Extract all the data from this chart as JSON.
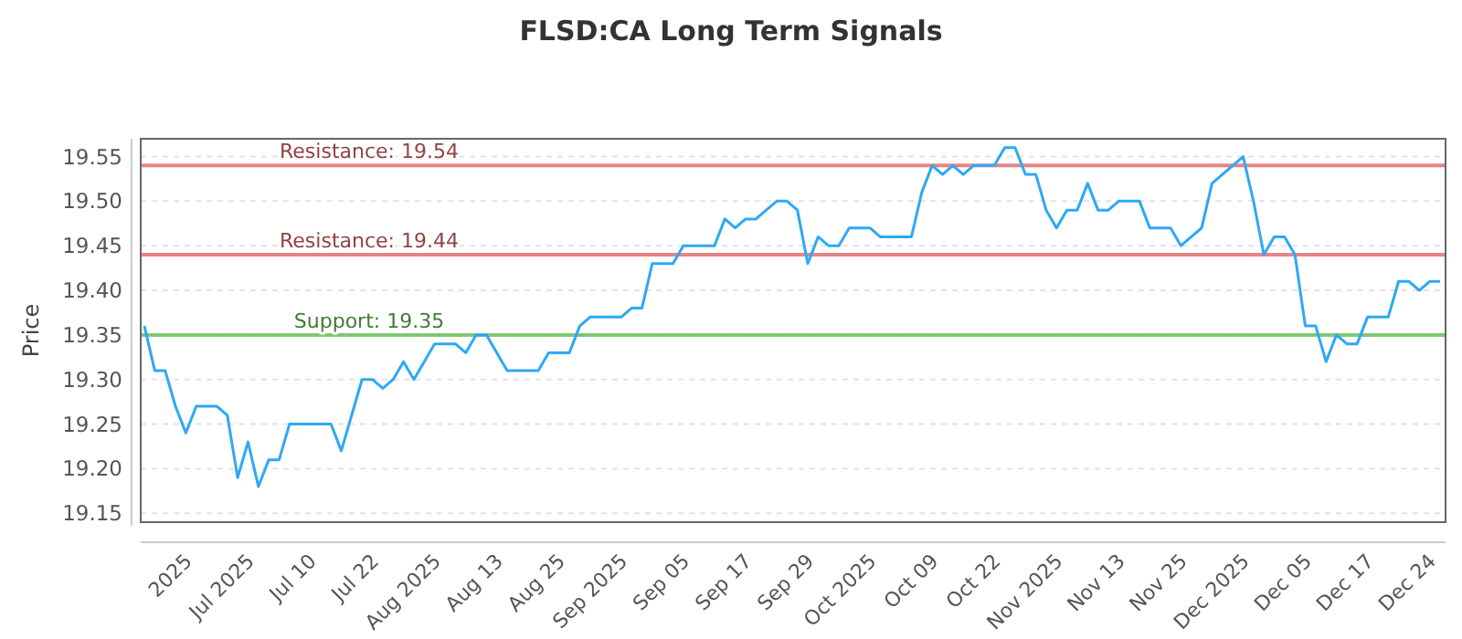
{
  "chart_data": {
    "type": "line",
    "title": "FLSD:CA Long Term Signals",
    "ylabel": "Price",
    "categories": [
      null,
      null,
      null,
      null,
      "2025",
      null,
      null,
      null,
      null,
      null,
      "Jul 2025",
      null,
      null,
      null,
      null,
      null,
      "Jul 10",
      null,
      null,
      null,
      null,
      null,
      "Jul 22",
      null,
      null,
      null,
      null,
      null,
      "Aug 2025",
      null,
      null,
      null,
      null,
      null,
      "Aug 13",
      null,
      null,
      null,
      null,
      null,
      "Aug 25",
      null,
      null,
      null,
      null,
      null,
      "Sep 2025",
      null,
      null,
      null,
      null,
      null,
      "Sep 05",
      null,
      null,
      null,
      null,
      null,
      "Sep 17",
      null,
      null,
      null,
      null,
      null,
      "Sep 29",
      null,
      null,
      null,
      null,
      null,
      "Oct 2025",
      null,
      null,
      null,
      null,
      null,
      "Oct 09",
      null,
      null,
      null,
      null,
      null,
      "Oct 22",
      null,
      null,
      null,
      null,
      null,
      "Nov 2025",
      null,
      null,
      null,
      null,
      null,
      "Nov 13",
      null,
      null,
      null,
      null,
      null,
      "Nov 25",
      null,
      null,
      null,
      null,
      null,
      "Dec 2025",
      null,
      null,
      null,
      null,
      null,
      "Dec 05",
      null,
      null,
      null,
      null,
      null,
      "Dec 17",
      null,
      null,
      null,
      null,
      null,
      "Dec 24",
      null
    ],
    "series": [
      {
        "color": "#2ea8f5",
        "values": [
          19.36,
          19.31,
          19.31,
          19.27,
          19.24,
          19.27,
          19.27,
          19.27,
          19.26,
          19.19,
          19.23,
          19.18,
          19.21,
          19.21,
          19.25,
          19.25,
          19.25,
          19.25,
          19.25,
          19.22,
          19.26,
          19.3,
          19.3,
          19.29,
          19.3,
          19.32,
          19.3,
          19.32,
          19.34,
          19.34,
          19.34,
          19.33,
          19.35,
          19.35,
          19.33,
          19.31,
          19.31,
          19.31,
          19.31,
          19.33,
          19.33,
          19.33,
          19.36,
          19.37,
          19.37,
          19.37,
          19.37,
          19.38,
          19.38,
          19.43,
          19.43,
          19.43,
          19.45,
          19.45,
          19.45,
          19.45,
          19.48,
          19.47,
          19.48,
          19.48,
          19.49,
          19.5,
          19.5,
          19.49,
          19.43,
          19.46,
          19.45,
          19.45,
          19.47,
          19.47,
          19.47,
          19.46,
          19.46,
          19.46,
          19.46,
          19.51,
          19.54,
          19.53,
          19.54,
          19.53,
          19.54,
          19.54,
          19.54,
          19.56,
          19.56,
          19.53,
          19.53,
          19.49,
          19.47,
          19.49,
          19.49,
          19.52,
          19.49,
          19.49,
          19.5,
          19.5,
          19.5,
          19.47,
          19.47,
          19.47,
          19.45,
          19.46,
          19.47,
          19.52,
          19.53,
          19.54,
          19.55,
          19.5,
          19.44,
          19.46,
          19.46,
          19.44,
          19.36,
          19.36,
          19.32,
          19.35,
          19.34,
          19.34,
          19.37,
          19.37,
          19.37,
          19.41,
          19.41,
          19.4,
          19.41,
          19.41
        ]
      }
    ],
    "ylim": [
      19.14,
      19.57
    ],
    "yticks": [
      19.15,
      {
        "value": 19.2,
        "label": "19.20"
      },
      19.25,
      {
        "value": 19.3,
        "label": "19.30"
      },
      19.35,
      {
        "value": 19.4,
        "label": "19.40"
      },
      19.45,
      {
        "value": 19.5,
        "label": "19.50"
      },
      19.55
    ],
    "grid": "y",
    "marker": "none",
    "line_style": "solid",
    "ref_lines": [
      {
        "axis": "y",
        "value": 19.54,
        "label": "Resistance: 19.54",
        "color": "#e06666"
      },
      {
        "axis": "y",
        "value": 19.44,
        "label": "Resistance: 19.44",
        "color": "#e06666"
      },
      {
        "axis": "y",
        "value": 19.35,
        "label": "Support: 19.35",
        "color": "#66bb55"
      }
    ]
  }
}
